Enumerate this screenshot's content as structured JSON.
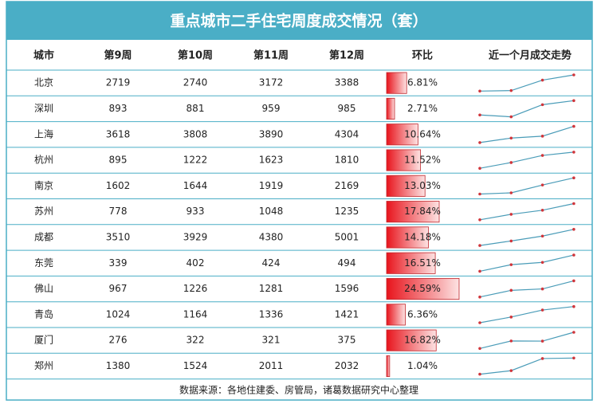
{
  "title": "重点城市二手住宅周度成交情况（套）",
  "table": {
    "headers": [
      "城市",
      "第9周",
      "第10周",
      "第11周",
      "第12周",
      "环比",
      "近一个月成交走势"
    ],
    "rows": [
      {
        "city": "北京",
        "weeks": [
          2719,
          2740,
          3172,
          3388
        ],
        "change": 6.81,
        "change_label": "6.81%"
      },
      {
        "city": "深圳",
        "weeks": [
          893,
          881,
          959,
          985
        ],
        "change": 2.71,
        "change_label": "2.71%"
      },
      {
        "city": "上海",
        "weeks": [
          3618,
          3808,
          3890,
          4304
        ],
        "change": 10.64,
        "change_label": "10.64%"
      },
      {
        "city": "杭州",
        "weeks": [
          895,
          1222,
          1623,
          1810
        ],
        "change": 11.52,
        "change_label": "11.52%"
      },
      {
        "city": "南京",
        "weeks": [
          1602,
          1644,
          1919,
          2169
        ],
        "change": 13.03,
        "change_label": "13.03%"
      },
      {
        "city": "苏州",
        "weeks": [
          778,
          933,
          1048,
          1235
        ],
        "change": 17.84,
        "change_label": "17.84%"
      },
      {
        "city": "成都",
        "weeks": [
          3510,
          3929,
          4380,
          5001
        ],
        "change": 14.18,
        "change_label": "14.18%"
      },
      {
        "city": "东莞",
        "weeks": [
          339,
          402,
          424,
          494
        ],
        "change": 16.51,
        "change_label": "16.51%"
      },
      {
        "city": "佛山",
        "weeks": [
          967,
          1226,
          1281,
          1596
        ],
        "change": 24.59,
        "change_label": "24.59%"
      },
      {
        "city": "青岛",
        "weeks": [
          1024,
          1164,
          1336,
          1421
        ],
        "change": 6.36,
        "change_label": "6.36%"
      },
      {
        "city": "厦门",
        "weeks": [
          276,
          322,
          321,
          375
        ],
        "change": 16.82,
        "change_label": "16.82%"
      },
      {
        "city": "郑州",
        "weeks": [
          1380,
          1524,
          2011,
          2032
        ],
        "change": 1.04,
        "change_label": "1.04%"
      }
    ]
  },
  "source": "数据来源：各地住建委、房管局，诸葛数据研究中心整理"
}
